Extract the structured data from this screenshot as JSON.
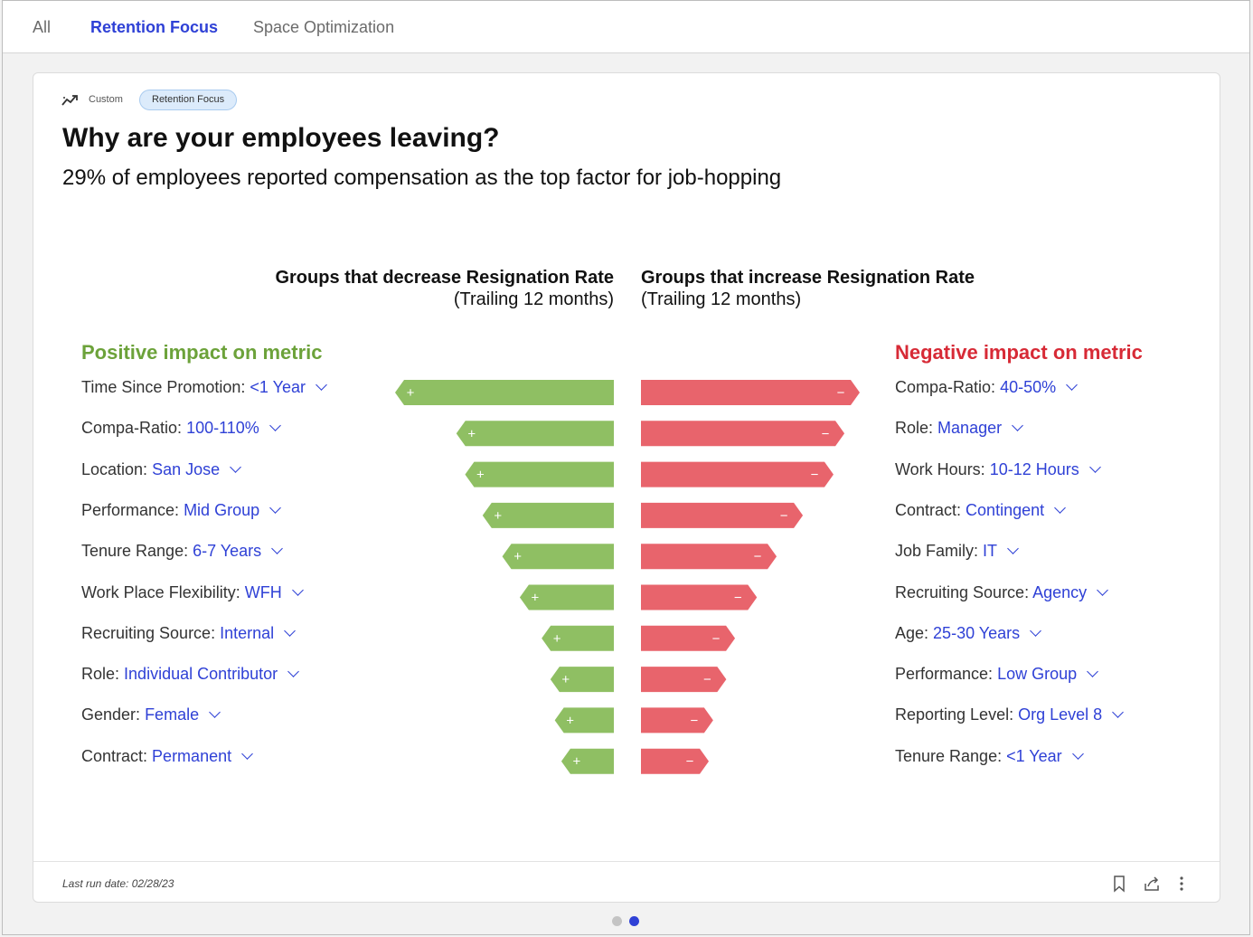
{
  "tabs": [
    {
      "label": "All"
    },
    {
      "label": "Retention Focus"
    },
    {
      "label": "Space Optimization"
    }
  ],
  "card": {
    "type_label": "Custom",
    "tag": "Retention Focus",
    "title": "Why are your employees leaving?",
    "subtitle": "29% of employees reported compensation as the top factor for job-hopping",
    "left_header": "Groups that decrease Resignation Rate",
    "left_subheader": "(Trailing 12 months)",
    "right_header": "Groups that increase Resignation Rate",
    "right_subheader": "(Trailing 12 months)",
    "positive_label": "Positive impact on metric",
    "negative_label": "Negative impact on metric",
    "last_run": "Last run date: 02/28/23"
  },
  "colors": {
    "accent": "#2f41d6",
    "positive": "#8fbf63",
    "negative": "#e8646c",
    "positive_text": "#6ca23a",
    "negative_text": "#d72a36"
  },
  "chart_data": {
    "type": "bar",
    "positive": [
      {
        "factor": "Time Since Promotion:",
        "value": "<1 Year",
        "bar": 1.0
      },
      {
        "factor": "Compa-Ratio:",
        "value": "100-110%",
        "bar": 0.72
      },
      {
        "factor": "Location:",
        "value": "San Jose",
        "bar": 0.68
      },
      {
        "factor": "Performance:",
        "value": "Mid Group",
        "bar": 0.6
      },
      {
        "factor": "Tenure Range:",
        "value": "6-7 Years",
        "bar": 0.51
      },
      {
        "factor": "Work Place Flexibility:",
        "value": "WFH",
        "bar": 0.43
      },
      {
        "factor": "Recruiting Source:",
        "value": "Internal",
        "bar": 0.33
      },
      {
        "factor": "Role:",
        "value": "Individual Contributor",
        "bar": 0.29
      },
      {
        "factor": "Gender:",
        "value": "Female",
        "bar": 0.27
      },
      {
        "factor": "Contract:",
        "value": "Permanent",
        "bar": 0.24
      }
    ],
    "negative": [
      {
        "factor": "Compa-Ratio:",
        "value": "40-50%",
        "bar": 1.0
      },
      {
        "factor": "Role:",
        "value": "Manager",
        "bar": 0.93
      },
      {
        "factor": "Work Hours:",
        "value": "10-12 Hours",
        "bar": 0.88
      },
      {
        "factor": "Contract:",
        "value": "Contingent",
        "bar": 0.74
      },
      {
        "factor": "Job Family:",
        "value": "IT",
        "bar": 0.62
      },
      {
        "factor": "Recruiting Source:",
        "value": "Agency",
        "bar": 0.53
      },
      {
        "factor": "Age:",
        "value": "25-30 Years",
        "bar": 0.43
      },
      {
        "factor": "Performance:",
        "value": "Low Group",
        "bar": 0.39
      },
      {
        "factor": "Reporting Level:",
        "value": "Org Level 8",
        "bar": 0.33
      },
      {
        "factor": "Tenure Range:",
        "value": "<1 Year",
        "bar": 0.31
      }
    ],
    "signs": {
      "positive": "+",
      "negative": "−"
    }
  },
  "icons": {
    "type": "trend-icon",
    "bookmark": "bookmark-icon",
    "share": "share-icon",
    "more": "more-vertical-icon"
  },
  "pagination": {
    "pages": 2,
    "active": 2
  }
}
